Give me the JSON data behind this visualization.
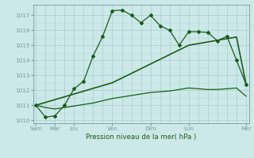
{
  "xlabel": "Pression niveau de la mer( hPa )",
  "background_color": "#cce8e8",
  "grid_color_major": "#aacece",
  "grid_color_minor": "#bbdada",
  "line_color": "#1a5c1a",
  "ylim": [
    1009.8,
    1017.7
  ],
  "xlim": [
    -0.15,
    11.15
  ],
  "day_labels": [
    "Sam",
    "Mar",
    "Jeu",
    "Ven",
    "Dim",
    "Lun",
    "Mer"
  ],
  "day_positions": [
    0,
    1,
    2,
    4,
    6,
    8,
    11
  ],
  "ytick_values": [
    1010,
    1011,
    1012,
    1013,
    1014,
    1015,
    1016,
    1017
  ],
  "ytick_labels": [
    "1010",
    "1011",
    "1012",
    "1013",
    "1014",
    "1015",
    "1016",
    "1017"
  ],
  "series1_x": [
    0,
    0.5,
    1,
    1.5,
    2,
    2.5,
    3,
    3.5,
    4,
    4.5,
    5,
    5.5,
    6,
    6.5,
    7,
    7.5,
    8,
    8.5,
    9,
    9.5,
    10,
    10.5,
    11
  ],
  "series1_y": [
    1011.0,
    1010.2,
    1010.3,
    1011.0,
    1012.1,
    1012.6,
    1014.3,
    1015.6,
    1017.3,
    1017.35,
    1017.0,
    1016.5,
    1017.0,
    1016.3,
    1016.0,
    1015.0,
    1015.9,
    1015.9,
    1015.85,
    1015.3,
    1015.6,
    1014.0,
    1012.4
  ],
  "series2_x": [
    0,
    0.5,
    1,
    1.5,
    2,
    2.5,
    3,
    3.5,
    4,
    4.5,
    5,
    5.5,
    6,
    6.5,
    7,
    7.5,
    8,
    8.5,
    9,
    9.5,
    10,
    10.5,
    11
  ],
  "series2_y": [
    1011.0,
    1010.85,
    1010.75,
    1010.85,
    1010.95,
    1011.05,
    1011.15,
    1011.3,
    1011.45,
    1011.55,
    1011.65,
    1011.75,
    1011.85,
    1011.9,
    1011.95,
    1012.05,
    1012.15,
    1012.1,
    1012.05,
    1012.05,
    1012.1,
    1012.15,
    1011.6
  ],
  "series3_x": [
    0,
    4,
    8,
    10.5,
    11
  ],
  "series3_y": [
    1011.0,
    1012.5,
    1015.0,
    1015.55,
    1012.4
  ],
  "marker_size": 2.0,
  "line_width": 0.9
}
